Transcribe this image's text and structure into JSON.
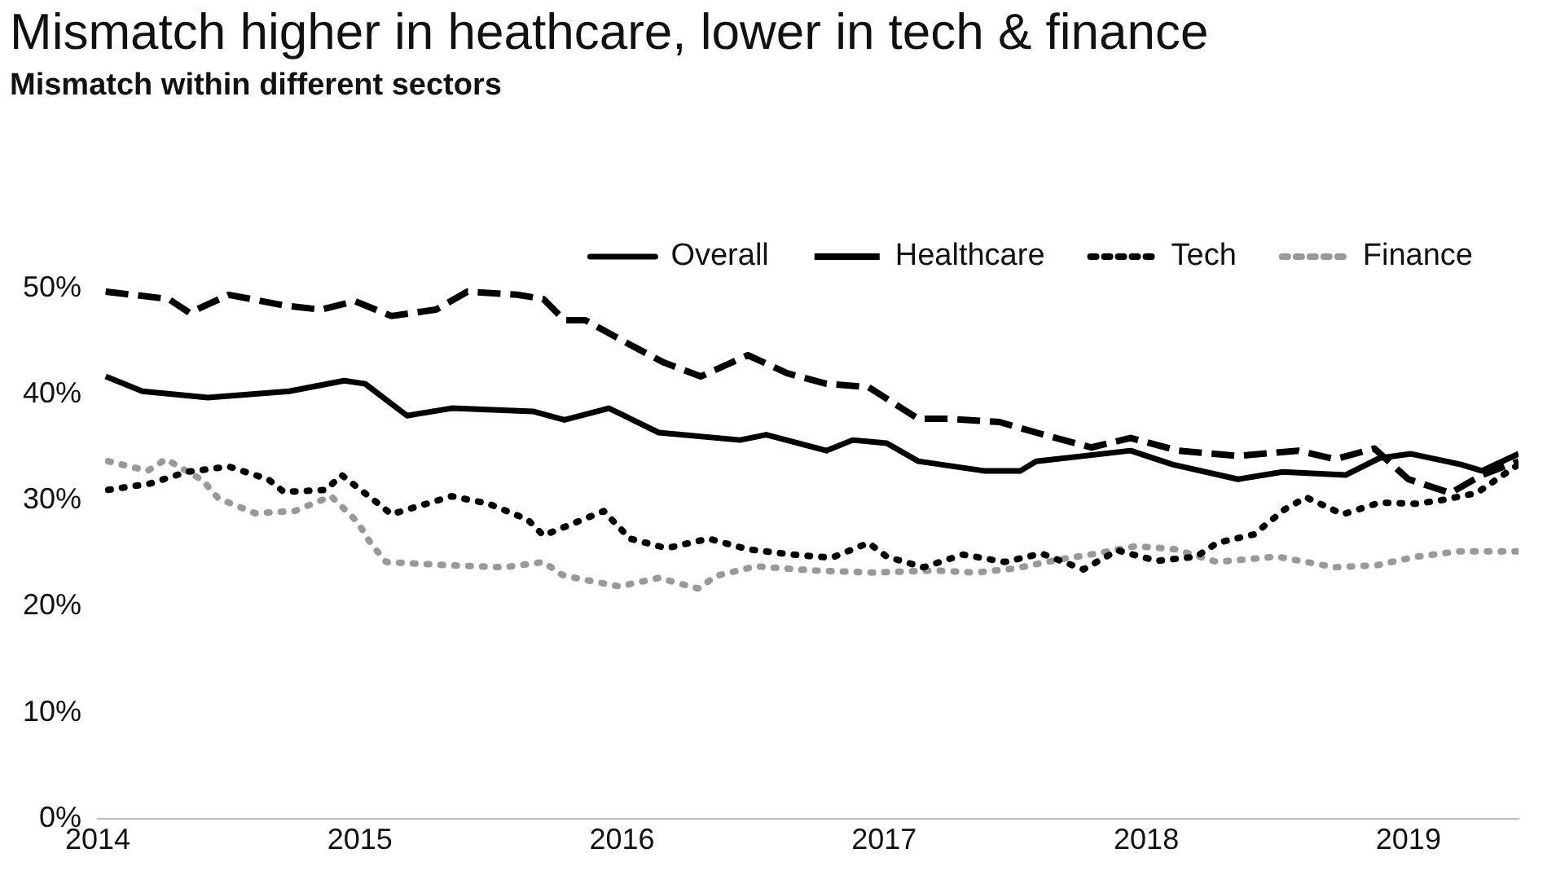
{
  "chart_data": {
    "type": "line",
    "title": "Mismatch higher in heathcare, lower in tech & finance",
    "subtitle": "Mismatch within different sectors",
    "xlim": [
      2014,
      2019.42
    ],
    "xticks": [
      2014,
      2015,
      2016,
      2017,
      2018,
      2019
    ],
    "ylim": [
      0,
      50
    ],
    "yticks": [
      {
        "value": 0,
        "label": "0%"
      },
      {
        "value": 10,
        "label": "10%"
      },
      {
        "value": 20,
        "label": "20%"
      },
      {
        "value": 30,
        "label": "30%"
      },
      {
        "value": 40,
        "label": "40%"
      },
      {
        "value": 50,
        "label": "50%"
      }
    ],
    "grid": false,
    "legend": "top right",
    "marker": "none",
    "series": [
      {
        "name": "Overall",
        "color": "#000000",
        "line_style": "solid",
        "x": [
          2014.03,
          2014.17,
          2014.42,
          2014.73,
          2014.94,
          2015.02,
          2015.18,
          2015.35,
          2015.66,
          2015.78,
          2015.95,
          2016.14,
          2016.45,
          2016.55,
          2016.78,
          2016.88,
          2017.01,
          2017.13,
          2017.38,
          2017.52,
          2017.58,
          2017.94,
          2018.1,
          2018.35,
          2018.52,
          2018.76,
          2018.89,
          2019.01,
          2019.2,
          2019.28,
          2019.42
        ],
        "values": [
          41.7,
          40.3,
          39.7,
          40.3,
          41.3,
          41,
          38,
          38.7,
          38.4,
          37.6,
          38.7,
          36.4,
          35.7,
          36.2,
          34.7,
          35.7,
          35.4,
          33.7,
          32.8,
          32.8,
          33.7,
          34.7,
          33.4,
          32,
          32.7,
          32.4,
          34,
          34.4,
          33.4,
          32.8,
          34.4
        ]
      },
      {
        "name": "Healthcare",
        "color": "#000000",
        "line_style": "dashed",
        "x": [
          2014.03,
          2014.27,
          2014.35,
          2014.5,
          2014.71,
          2014.85,
          2014.98,
          2015.12,
          2015.29,
          2015.41,
          2015.6,
          2015.7,
          2015.78,
          2015.86,
          2016.03,
          2016.16,
          2016.3,
          2016.48,
          2016.63,
          2016.78,
          2016.94,
          2017.13,
          2017.25,
          2017.44,
          2017.58,
          2017.79,
          2017.94,
          2018.12,
          2018.35,
          2018.58,
          2018.72,
          2018.87,
          2019,
          2019.16,
          2019.28,
          2019.42
        ],
        "values": [
          49.7,
          49,
          47.7,
          49.4,
          48.4,
          48,
          48.8,
          47.4,
          48,
          49.7,
          49.4,
          49,
          47,
          47,
          44.7,
          43,
          41.7,
          43.7,
          42,
          41,
          40.7,
          37.7,
          37.7,
          37.4,
          36.4,
          35,
          35.9,
          34.7,
          34.2,
          34.7,
          33.9,
          34.9,
          32,
          30.7,
          32.4,
          33.7
        ]
      },
      {
        "name": "Tech",
        "color": "#000000",
        "line_style": "dotted",
        "x": [
          2014.04,
          2014.2,
          2014.34,
          2014.5,
          2014.65,
          2014.71,
          2014.87,
          2014.93,
          2015.06,
          2015.12,
          2015.35,
          2015.49,
          2015.64,
          2015.7,
          2015.93,
          2016.03,
          2016.17,
          2016.33,
          2016.48,
          2016.65,
          2016.8,
          2016.94,
          2017.01,
          2017.15,
          2017.3,
          2017.46,
          2017.6,
          2017.76,
          2017.89,
          2018.04,
          2018.19,
          2018.27,
          2018.41,
          2018.53,
          2018.61,
          2018.75,
          2018.89,
          2019.03,
          2019.12,
          2019.26,
          2019.42
        ],
        "values": [
          31,
          31.6,
          32.7,
          33.2,
          32,
          30.8,
          31,
          32.4,
          29.9,
          28.7,
          30.4,
          29.7,
          28.2,
          26.7,
          29,
          26.4,
          25.5,
          26.4,
          25.4,
          24.9,
          24.6,
          26,
          24.7,
          23.7,
          24.9,
          24.2,
          25,
          23.5,
          25.3,
          24.3,
          24.7,
          26,
          26.8,
          29.2,
          30.3,
          28.7,
          29.8,
          29.7,
          30,
          30.7,
          33.4
        ]
      },
      {
        "name": "Finance",
        "color": "#999999",
        "line_style": "dotted",
        "x": [
          2014.04,
          2014.19,
          2014.26,
          2014.4,
          2014.46,
          2014.6,
          2014.75,
          2014.89,
          2014.99,
          2015.04,
          2015.1,
          2015.33,
          2015.55,
          2015.7,
          2015.77,
          2015.84,
          2015.99,
          2016.14,
          2016.29,
          2016.36,
          2016.51,
          2016.73,
          2016.96,
          2017.19,
          2017.35,
          2017.5,
          2017.66,
          2017.81,
          2017.96,
          2018.11,
          2018.27,
          2018.5,
          2018.72,
          2018.88,
          2019.03,
          2019.19,
          2019.42
        ],
        "values": [
          33.7,
          32.8,
          33.9,
          31.9,
          30.2,
          28.8,
          29,
          30.4,
          28,
          26,
          24.2,
          23.9,
          23.7,
          24.2,
          23,
          22.6,
          21.9,
          22.7,
          21.7,
          22.9,
          23.8,
          23.4,
          23.2,
          23.4,
          23.2,
          23.6,
          24.4,
          25,
          25.7,
          25.4,
          24.2,
          24.7,
          23.7,
          23.9,
          24.7,
          25.2,
          25.2
        ]
      }
    ]
  }
}
